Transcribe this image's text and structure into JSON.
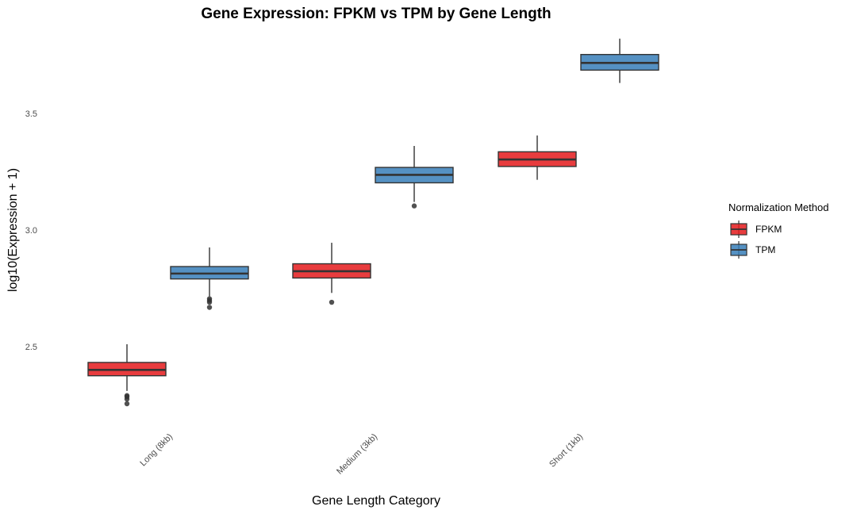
{
  "chart_data": {
    "type": "boxplot",
    "title": "Gene Expression: FPKM vs TPM by Gene Length",
    "xlabel": "Gene Length Category",
    "ylabel": "log10(Expression + 1)",
    "ylim": [
      2.17,
      3.87
    ],
    "yticks": [
      2.5,
      3.0,
      3.5
    ],
    "ytick_labels": [
      "2.5",
      "3.0",
      "3.5"
    ],
    "categories": [
      "Long (8kb)",
      "Medium (3kb)",
      "Short (1kb)"
    ],
    "legend": {
      "title": "Normalization Method",
      "position": "right",
      "entries": [
        {
          "name": "FPKM",
          "color": "#E41A1C"
        },
        {
          "name": "TPM",
          "color": "#377EB8"
        }
      ]
    },
    "series": [
      {
        "name": "FPKM",
        "color": "#E41A1C",
        "boxes": [
          {
            "category": "Long (8kb)",
            "whisker_low": 2.31,
            "q1": 2.375,
            "median": 2.4,
            "q3": 2.432,
            "whisker_high": 2.51,
            "outliers": [
              2.29,
              2.285,
              2.275,
              2.255
            ]
          },
          {
            "category": "Medium (3kb)",
            "whisker_low": 2.73,
            "q1": 2.794,
            "median": 2.823,
            "q3": 2.855,
            "whisker_high": 2.945,
            "outliers": [
              2.69
            ]
          },
          {
            "category": "Short (1kb)",
            "whisker_low": 3.215,
            "q1": 3.272,
            "median": 3.302,
            "q3": 3.335,
            "whisker_high": 3.405,
            "outliers": []
          }
        ]
      },
      {
        "name": "TPM",
        "color": "#377EB8",
        "boxes": [
          {
            "category": "Long (8kb)",
            "whisker_low": 2.715,
            "q1": 2.79,
            "median": 2.813,
            "q3": 2.843,
            "whisker_high": 2.925,
            "outliers": [
              2.705,
              2.698,
              2.69,
              2.668
            ]
          },
          {
            "category": "Medium (3kb)",
            "whisker_low": 3.12,
            "q1": 3.202,
            "median": 3.236,
            "q3": 3.268,
            "whisker_high": 3.36,
            "outliers": [
              3.103
            ]
          },
          {
            "category": "Short (1kb)",
            "whisker_low": 3.63,
            "q1": 3.685,
            "median": 3.716,
            "q3": 3.752,
            "whisker_high": 3.82,
            "outliers": []
          }
        ]
      }
    ]
  }
}
